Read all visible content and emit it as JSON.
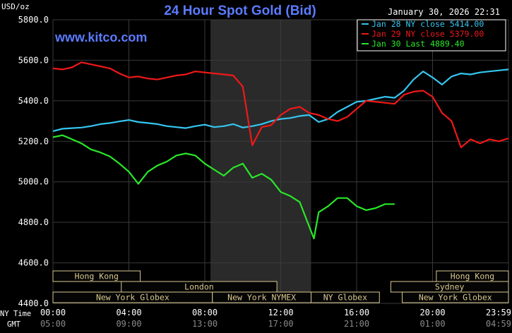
{
  "header": {
    "unit": "USD/oz",
    "title": "24 Hour Spot Gold (Bid)",
    "datetime": "January 30, 2026 22:31",
    "watermark": "www.kitco.com"
  },
  "colors": {
    "background": "#000000",
    "plot_bg": "#000000",
    "shade": "#2a2a2a",
    "grid": "#3a3a3a",
    "title": "#5b7bff",
    "watermark": "#5b7bff",
    "session_fill": "#050505",
    "session_border": "#d9c88f",
    "session_text": "#d9c88f"
  },
  "legend": {
    "placement": "top-right",
    "entries": [
      {
        "label": "Jan 28 NY close 5414.00",
        "color": "#35c6f0"
      },
      {
        "label": "Jan 29 NY close 5379.00",
        "color": "#f01818"
      },
      {
        "label": "Jan 30 Last 4889.40",
        "color": "#28e828"
      }
    ]
  },
  "x_axis": {
    "row1_label": "NY Time",
    "row2_label": "GMT",
    "ticks": [
      {
        "h": 0,
        "ny": "00:00",
        "gmt": "05:00"
      },
      {
        "h": 4,
        "ny": "04:00",
        "gmt": "09:00"
      },
      {
        "h": 8,
        "ny": "08:00",
        "gmt": "13:00"
      },
      {
        "h": 12,
        "ny": "12:00",
        "gmt": "17:00"
      },
      {
        "h": 16,
        "ny": "16:00",
        "gmt": "21:00"
      },
      {
        "h": 20,
        "ny": "20:00",
        "gmt": "01:00"
      },
      {
        "h": 24,
        "ny": "23:59",
        "gmt": "04:59"
      }
    ]
  },
  "sessions": [
    {
      "label": "Hong Kong",
      "start": 0,
      "end": 4.6,
      "row": 0
    },
    {
      "label": "Hong Kong",
      "start": 20.2,
      "end": 24,
      "row": 0
    },
    {
      "label": "London",
      "start": 3.6,
      "end": 11.8,
      "row": 1
    },
    {
      "label": "Sydney",
      "start": 17.8,
      "end": 24,
      "row": 1
    },
    {
      "label": "New York Globex",
      "start": 0,
      "end": 8.4,
      "row": 2
    },
    {
      "label": "New York NYMEX",
      "start": 8.4,
      "end": 13.6,
      "row": 2
    },
    {
      "label": "NY Globex",
      "start": 13.6,
      "end": 17.2,
      "row": 2
    },
    {
      "label": "New York Globex",
      "start": 18.4,
      "end": 24,
      "row": 2
    }
  ],
  "chart_data": {
    "type": "line",
    "title": "24 Hour Spot Gold (Bid)",
    "ylabel": "USD/oz",
    "xlabel": "",
    "xlim": [
      0,
      24
    ],
    "ylim": [
      4400,
      5800
    ],
    "y_ticks": [
      "4400.0",
      "4600.0",
      "4800.0",
      "5000.0",
      "5200.0",
      "5400.0",
      "5600.0",
      "5800.0"
    ],
    "shaded_region": [
      8.3,
      13.6
    ],
    "grid": true,
    "series": [
      {
        "name": "Jan 28 NY close 5414.00",
        "color": "#35c6f0",
        "x": [
          0,
          0.5,
          1,
          1.5,
          2,
          2.5,
          3,
          3.5,
          4,
          4.5,
          5,
          5.5,
          6,
          6.5,
          7,
          7.5,
          8,
          8.5,
          9,
          9.5,
          10,
          10.5,
          11,
          11.5,
          12,
          12.5,
          13,
          13.5,
          14,
          14.5,
          15,
          15.5,
          16,
          16.5,
          17,
          17.5,
          18,
          18.5,
          19,
          19.5,
          20,
          20.5,
          21,
          21.5,
          22,
          22.5,
          23,
          23.5,
          24
        ],
        "y": [
          5250,
          5262,
          5265,
          5268,
          5275,
          5285,
          5290,
          5298,
          5305,
          5295,
          5290,
          5285,
          5275,
          5270,
          5265,
          5275,
          5282,
          5270,
          5275,
          5285,
          5268,
          5275,
          5285,
          5300,
          5310,
          5315,
          5325,
          5330,
          5295,
          5310,
          5345,
          5370,
          5395,
          5400,
          5410,
          5420,
          5415,
          5450,
          5505,
          5545,
          5515,
          5480,
          5520,
          5535,
          5530,
          5540,
          5545,
          5550,
          5555
        ]
      },
      {
        "name": "Jan 29 NY close 5379.00",
        "color": "#f01818",
        "x": [
          0,
          0.5,
          1,
          1.5,
          2,
          2.5,
          3,
          3.5,
          4,
          4.5,
          5,
          5.5,
          6,
          6.5,
          7,
          7.5,
          8,
          8.5,
          9,
          9.5,
          10,
          10.5,
          11,
          11.5,
          12,
          12.5,
          13,
          13.5,
          14,
          14.5,
          15,
          15.5,
          16,
          16.5,
          17,
          17.5,
          18,
          18.5,
          19,
          19.5,
          20,
          20.5,
          21,
          21.5,
          22,
          22.5,
          23,
          23.5,
          24
        ],
        "y": [
          5560,
          5555,
          5565,
          5590,
          5580,
          5570,
          5560,
          5535,
          5515,
          5520,
          5510,
          5505,
          5515,
          5525,
          5530,
          5545,
          5540,
          5535,
          5530,
          5525,
          5470,
          5180,
          5270,
          5280,
          5330,
          5360,
          5370,
          5340,
          5330,
          5310,
          5300,
          5320,
          5360,
          5400,
          5395,
          5390,
          5385,
          5430,
          5445,
          5450,
          5420,
          5340,
          5300,
          5170,
          5210,
          5190,
          5210,
          5200,
          5215
        ]
      },
      {
        "name": "Jan 30 Last 4889.40",
        "color": "#28e828",
        "x": [
          0,
          0.5,
          1,
          1.5,
          2,
          2.5,
          3,
          3.5,
          4,
          4.5,
          5,
          5.5,
          6,
          6.5,
          7,
          7.5,
          8,
          8.5,
          9,
          9.5,
          10,
          10.5,
          11,
          11.5,
          12,
          12.5,
          13,
          13.5,
          13.75,
          14,
          14.5,
          15,
          15.5,
          16,
          16.5,
          17,
          17.5,
          18
        ],
        "y": [
          5220,
          5230,
          5210,
          5190,
          5160,
          5145,
          5125,
          5090,
          5050,
          4990,
          5050,
          5080,
          5100,
          5130,
          5140,
          5130,
          5090,
          5060,
          5030,
          5070,
          5090,
          5020,
          5040,
          5010,
          4950,
          4930,
          4900,
          4780,
          4720,
          4850,
          4880,
          4920,
          4920,
          4880,
          4860,
          4870,
          4890,
          4890
        ]
      }
    ]
  }
}
